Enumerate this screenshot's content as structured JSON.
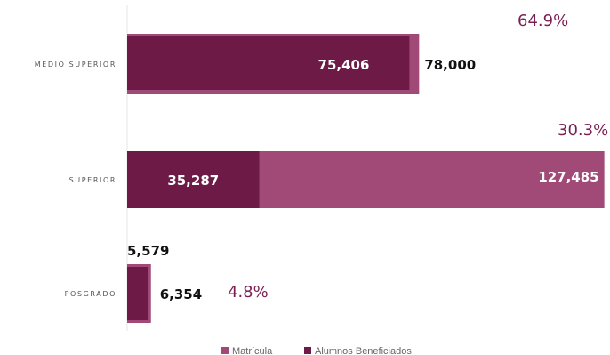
{
  "chart_data": {
    "type": "bar",
    "orientation": "horizontal",
    "categories": [
      "MEDIO SUPERIOR",
      "SUPERIOR",
      "POSGRADO"
    ],
    "series": [
      {
        "name": "Matrícula",
        "values": [
          78000,
          127485,
          6354
        ],
        "color": "#a14a78"
      },
      {
        "name": "Alumnos Beneficiados",
        "values": [
          75406,
          35287,
          5579
        ],
        "color": "#6e1a47"
      }
    ],
    "percent_labels": [
      "64.9%",
      "30.3%",
      "4.8%"
    ],
    "value_labels": {
      "matricula": [
        "78,000",
        "127,485",
        "6,354"
      ],
      "beneficiados": [
        "75,406",
        "35,287",
        "5,579"
      ]
    },
    "percent_color": "#7a1f52",
    "xlim": [
      0,
      129000
    ],
    "grid": false,
    "legend_position": "bottom"
  }
}
